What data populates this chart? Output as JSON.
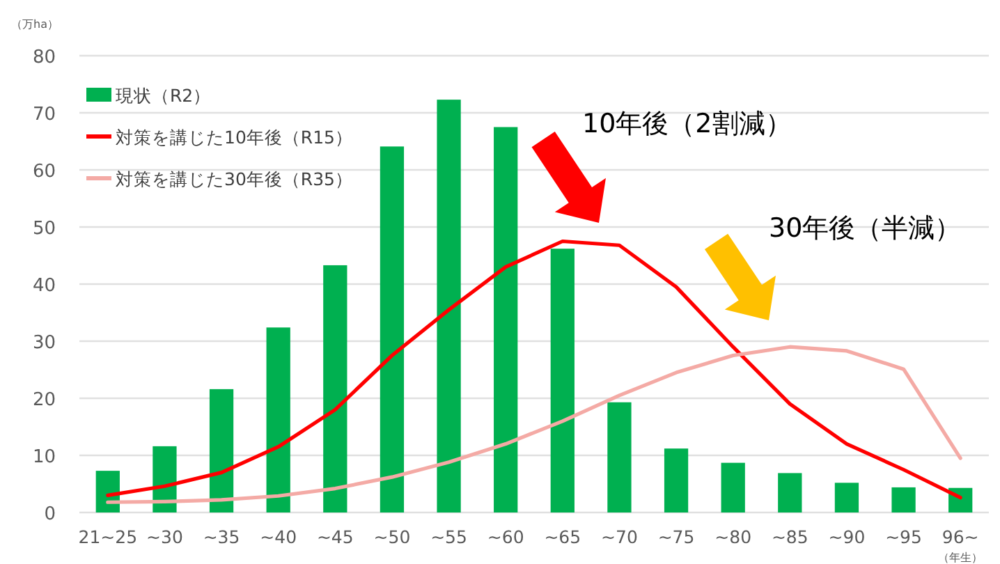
{
  "chart_data": {
    "type": "bar",
    "ylabel": "（万ha）",
    "xlabel": "（年生）",
    "categories": [
      "21~25",
      "~30",
      "~35",
      "~40",
      "~45",
      "~50",
      "~55",
      "~60",
      "~65",
      "~70",
      "~75",
      "~80",
      "~85",
      "~90",
      "~95",
      "96~"
    ],
    "series": [
      {
        "name": "現状（R2）",
        "color": "#00b050",
        "values": [
          7.3,
          11.6,
          21.6,
          32.4,
          43.3,
          64.1,
          72.3,
          67.5,
          46.2,
          19.3,
          11.2,
          8.7,
          6.9,
          5.2,
          4.4,
          4.3
        ]
      },
      {
        "name": "対策を講じた10年後（R15）",
        "type": "line",
        "color": "#ff0000",
        "values": [
          3.0,
          4.6,
          7.0,
          11.5,
          18,
          27.5,
          35.5,
          43,
          47.5,
          46.8,
          39.5,
          29,
          19,
          12,
          7.5,
          2.6
        ]
      },
      {
        "name": "対策を講じた30年後（R35）",
        "type": "line",
        "color": "#f4aaa5",
        "values": [
          1.8,
          1.9,
          2.2,
          2.9,
          4.2,
          6.2,
          8.8,
          12,
          16,
          20.5,
          24.5,
          27.5,
          29,
          28.3,
          25.1,
          9.5
        ]
      }
    ],
    "ylim": [
      0,
      80
    ],
    "yticks": [
      0,
      10,
      20,
      30,
      40,
      50,
      60,
      70,
      80
    ],
    "grid": "y",
    "legend": "top left",
    "annotations": [
      "10年後（2割減）",
      "30年後（半減）"
    ]
  }
}
